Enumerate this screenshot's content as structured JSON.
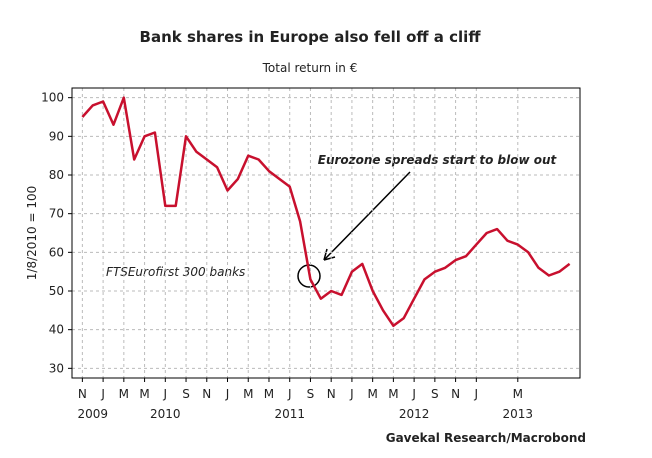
{
  "chart_data": {
    "type": "line",
    "title": "Bank shares in Europe also fell off a cliff",
    "subtitle": "Total return in €",
    "ylabel": "1/8/2010 = 100",
    "source": "Gavekal Research/Macrobond",
    "annotation": "Eurozone spreads start to blow out",
    "x": [
      "2009-11",
      "2009-12",
      "2010-01",
      "2010-02",
      "2010-03",
      "2010-04",
      "2010-05",
      "2010-06",
      "2010-07",
      "2010-08",
      "2010-09",
      "2010-10",
      "2010-11",
      "2010-12",
      "2011-01",
      "2011-02",
      "2011-03",
      "2011-04",
      "2011-05",
      "2011-06",
      "2011-07",
      "2011-08",
      "2011-09",
      "2011-10",
      "2011-11",
      "2011-12",
      "2012-01",
      "2012-02",
      "2012-03",
      "2012-04",
      "2012-05",
      "2012-06",
      "2012-07",
      "2012-08",
      "2012-09",
      "2012-10",
      "2012-11",
      "2012-12",
      "2013-01",
      "2013-02",
      "2013-03",
      "2013-04",
      "2013-05",
      "2013-06",
      "2013-07",
      "2013-08",
      "2013-09",
      "2013-10"
    ],
    "series": [
      {
        "name": "FTSEurofirst 300 banks",
        "color": "#c8102e",
        "values": [
          95,
          98,
          99,
          93,
          100,
          84,
          90,
          91,
          72,
          72,
          90,
          86,
          84,
          82,
          76,
          79,
          85,
          84,
          81,
          79,
          77,
          68,
          53,
          48,
          50,
          49,
          55,
          57,
          50,
          45,
          41,
          43,
          48,
          53,
          55,
          56,
          58,
          59,
          62,
          65,
          66,
          63,
          62,
          60,
          56,
          54,
          55,
          57
        ]
      }
    ],
    "xlim": [
      "2009-10",
      "2013-11"
    ],
    "xticks": [
      {
        "value": "2009-11",
        "label": "N"
      },
      {
        "value": "2010-01",
        "label": "J"
      },
      {
        "value": "2010-03",
        "label": "M"
      },
      {
        "value": "2010-05",
        "label": "M"
      },
      {
        "value": "2010-07",
        "label": "J"
      },
      {
        "value": "2010-09",
        "label": "S"
      },
      {
        "value": "2010-11",
        "label": "N"
      },
      {
        "value": "2011-01",
        "label": "J"
      },
      {
        "value": "2011-03",
        "label": "M"
      },
      {
        "value": "2011-05",
        "label": "M"
      },
      {
        "value": "2011-07",
        "label": "J"
      },
      {
        "value": "2011-09",
        "label": "S"
      },
      {
        "value": "2011-11",
        "label": "N"
      },
      {
        "value": "2012-01",
        "label": "J"
      },
      {
        "value": "2012-03",
        "label": "M"
      },
      {
        "value": "2012-05",
        "label": "M"
      },
      {
        "value": "2012-07",
        "label": "J"
      },
      {
        "value": "2012-09",
        "label": "S"
      },
      {
        "value": "2012-11",
        "label": "N"
      },
      {
        "value": "2013-01",
        "label": "J"
      },
      {
        "value": "2013-05",
        "label": "M"
      }
    ],
    "year_labels": [
      {
        "value": "2009-12",
        "label": "2009"
      },
      {
        "value": "2010-07",
        "label": "2010"
      },
      {
        "value": "2011-07",
        "label": "2011"
      },
      {
        "value": "2012-07",
        "label": "2012"
      },
      {
        "value": "2013-05",
        "label": "2013"
      }
    ],
    "ylim": [
      27.5,
      102.5
    ],
    "yticks": [
      30,
      40,
      50,
      60,
      70,
      80,
      90,
      100
    ],
    "grid": true
  }
}
